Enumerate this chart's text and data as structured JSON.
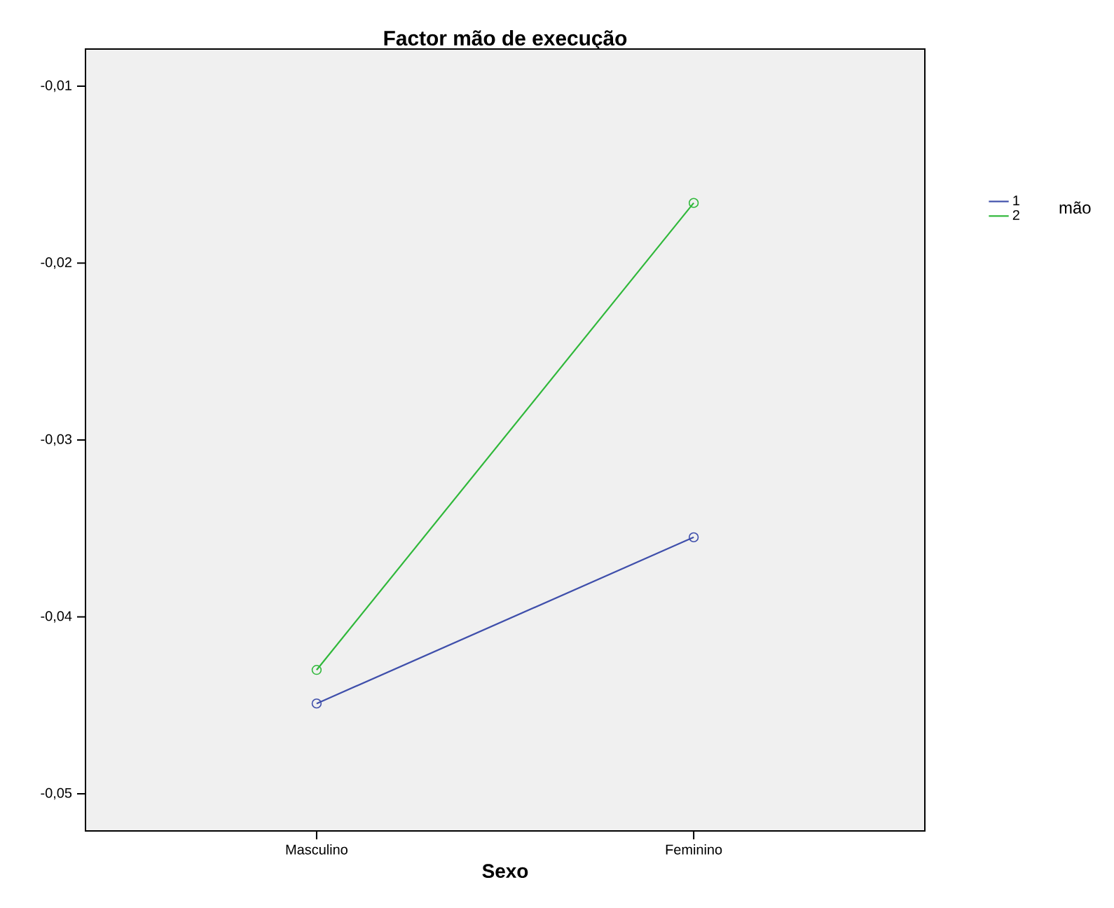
{
  "chart_data": {
    "type": "line",
    "title": "Factor mão de execução",
    "xlabel": "Sexo",
    "legend_title": "mão",
    "categories": [
      "Masculino",
      "Feminino"
    ],
    "series": [
      {
        "name": "1",
        "color": "#3f4fab",
        "values": [
          -0.0449,
          -0.0355
        ]
      },
      {
        "name": "2",
        "color": "#2fb83a",
        "values": [
          -0.043,
          -0.0166
        ]
      }
    ],
    "ylim": [
      -0.0521,
      -0.0079
    ],
    "yticks": [
      {
        "value": -0.05,
        "label": "-0,05"
      },
      {
        "value": -0.04,
        "label": "-0,04"
      },
      {
        "value": -0.03,
        "label": "-0,03"
      },
      {
        "value": -0.02,
        "label": "-0,02"
      },
      {
        "value": -0.01,
        "label": "-0,01"
      }
    ],
    "marker": "circle",
    "line_style": "solid",
    "grid": false,
    "legend": "right"
  }
}
